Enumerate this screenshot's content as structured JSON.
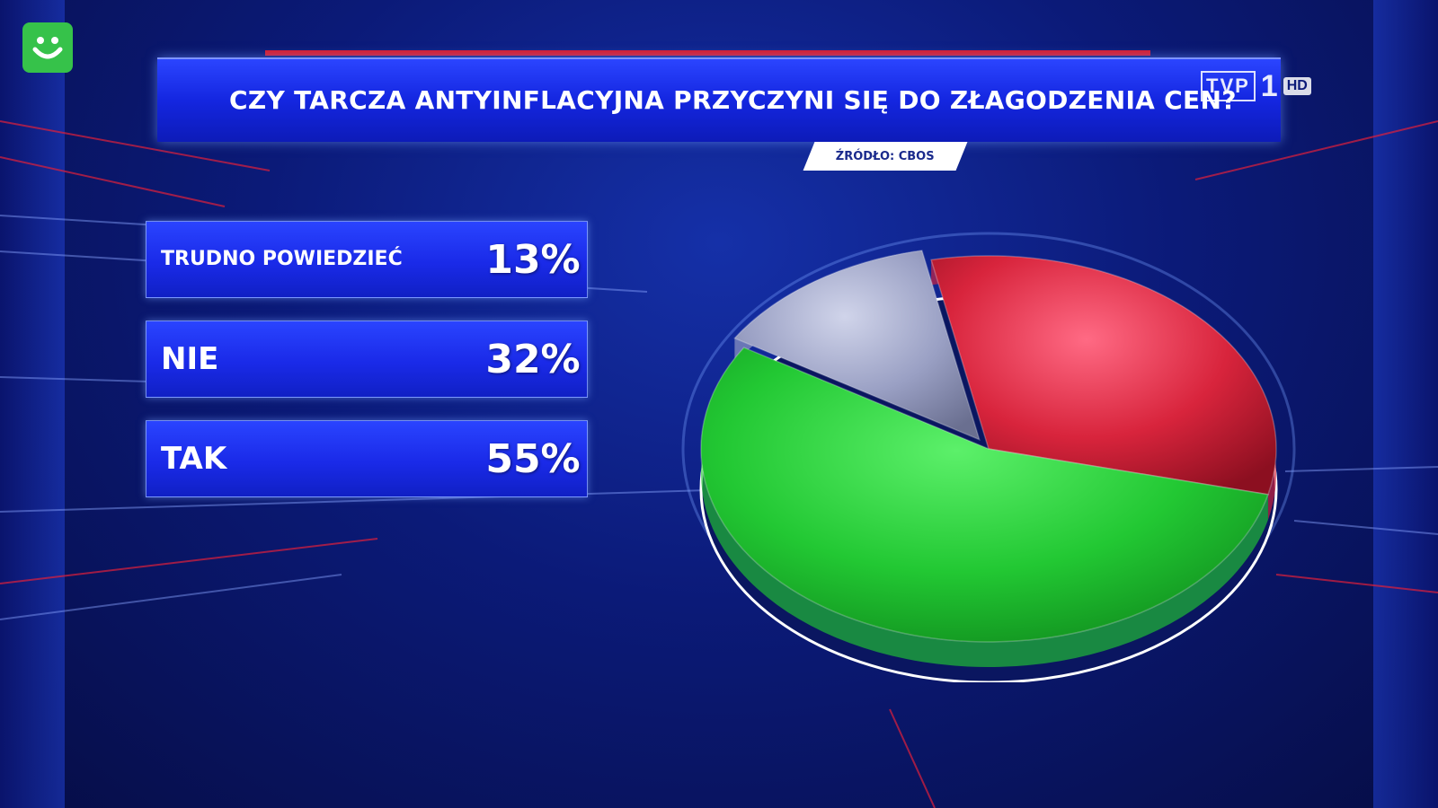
{
  "title": "CZY TARCZA ANTYINFLACYJNA PRZYCZYNI SIĘ DO ZŁAGODZENIA CEN?",
  "source": "ŹRÓDŁO: CBOS",
  "logo": {
    "brand": "TVP",
    "number": "1",
    "quality": "HD"
  },
  "colors": {
    "accent": "#1a2ae8",
    "red_strip": "#d81a2a",
    "channel_icon": "#36c24a"
  },
  "chart_data": {
    "type": "pie",
    "title": "CZY TARCZA ANTYINFLACYJNA PRZYCZYNI SIĘ DO ZŁAGODZENIA CEN?",
    "categories": [
      "TRUDNO POWIEDZIEĆ",
      "NIE",
      "TAK"
    ],
    "values": [
      13,
      32,
      55
    ],
    "value_labels": [
      "13%",
      "32%",
      "55%"
    ],
    "colors": [
      "#9aa0c4",
      "#d8243c",
      "#22c833"
    ],
    "legend_position": "left"
  }
}
